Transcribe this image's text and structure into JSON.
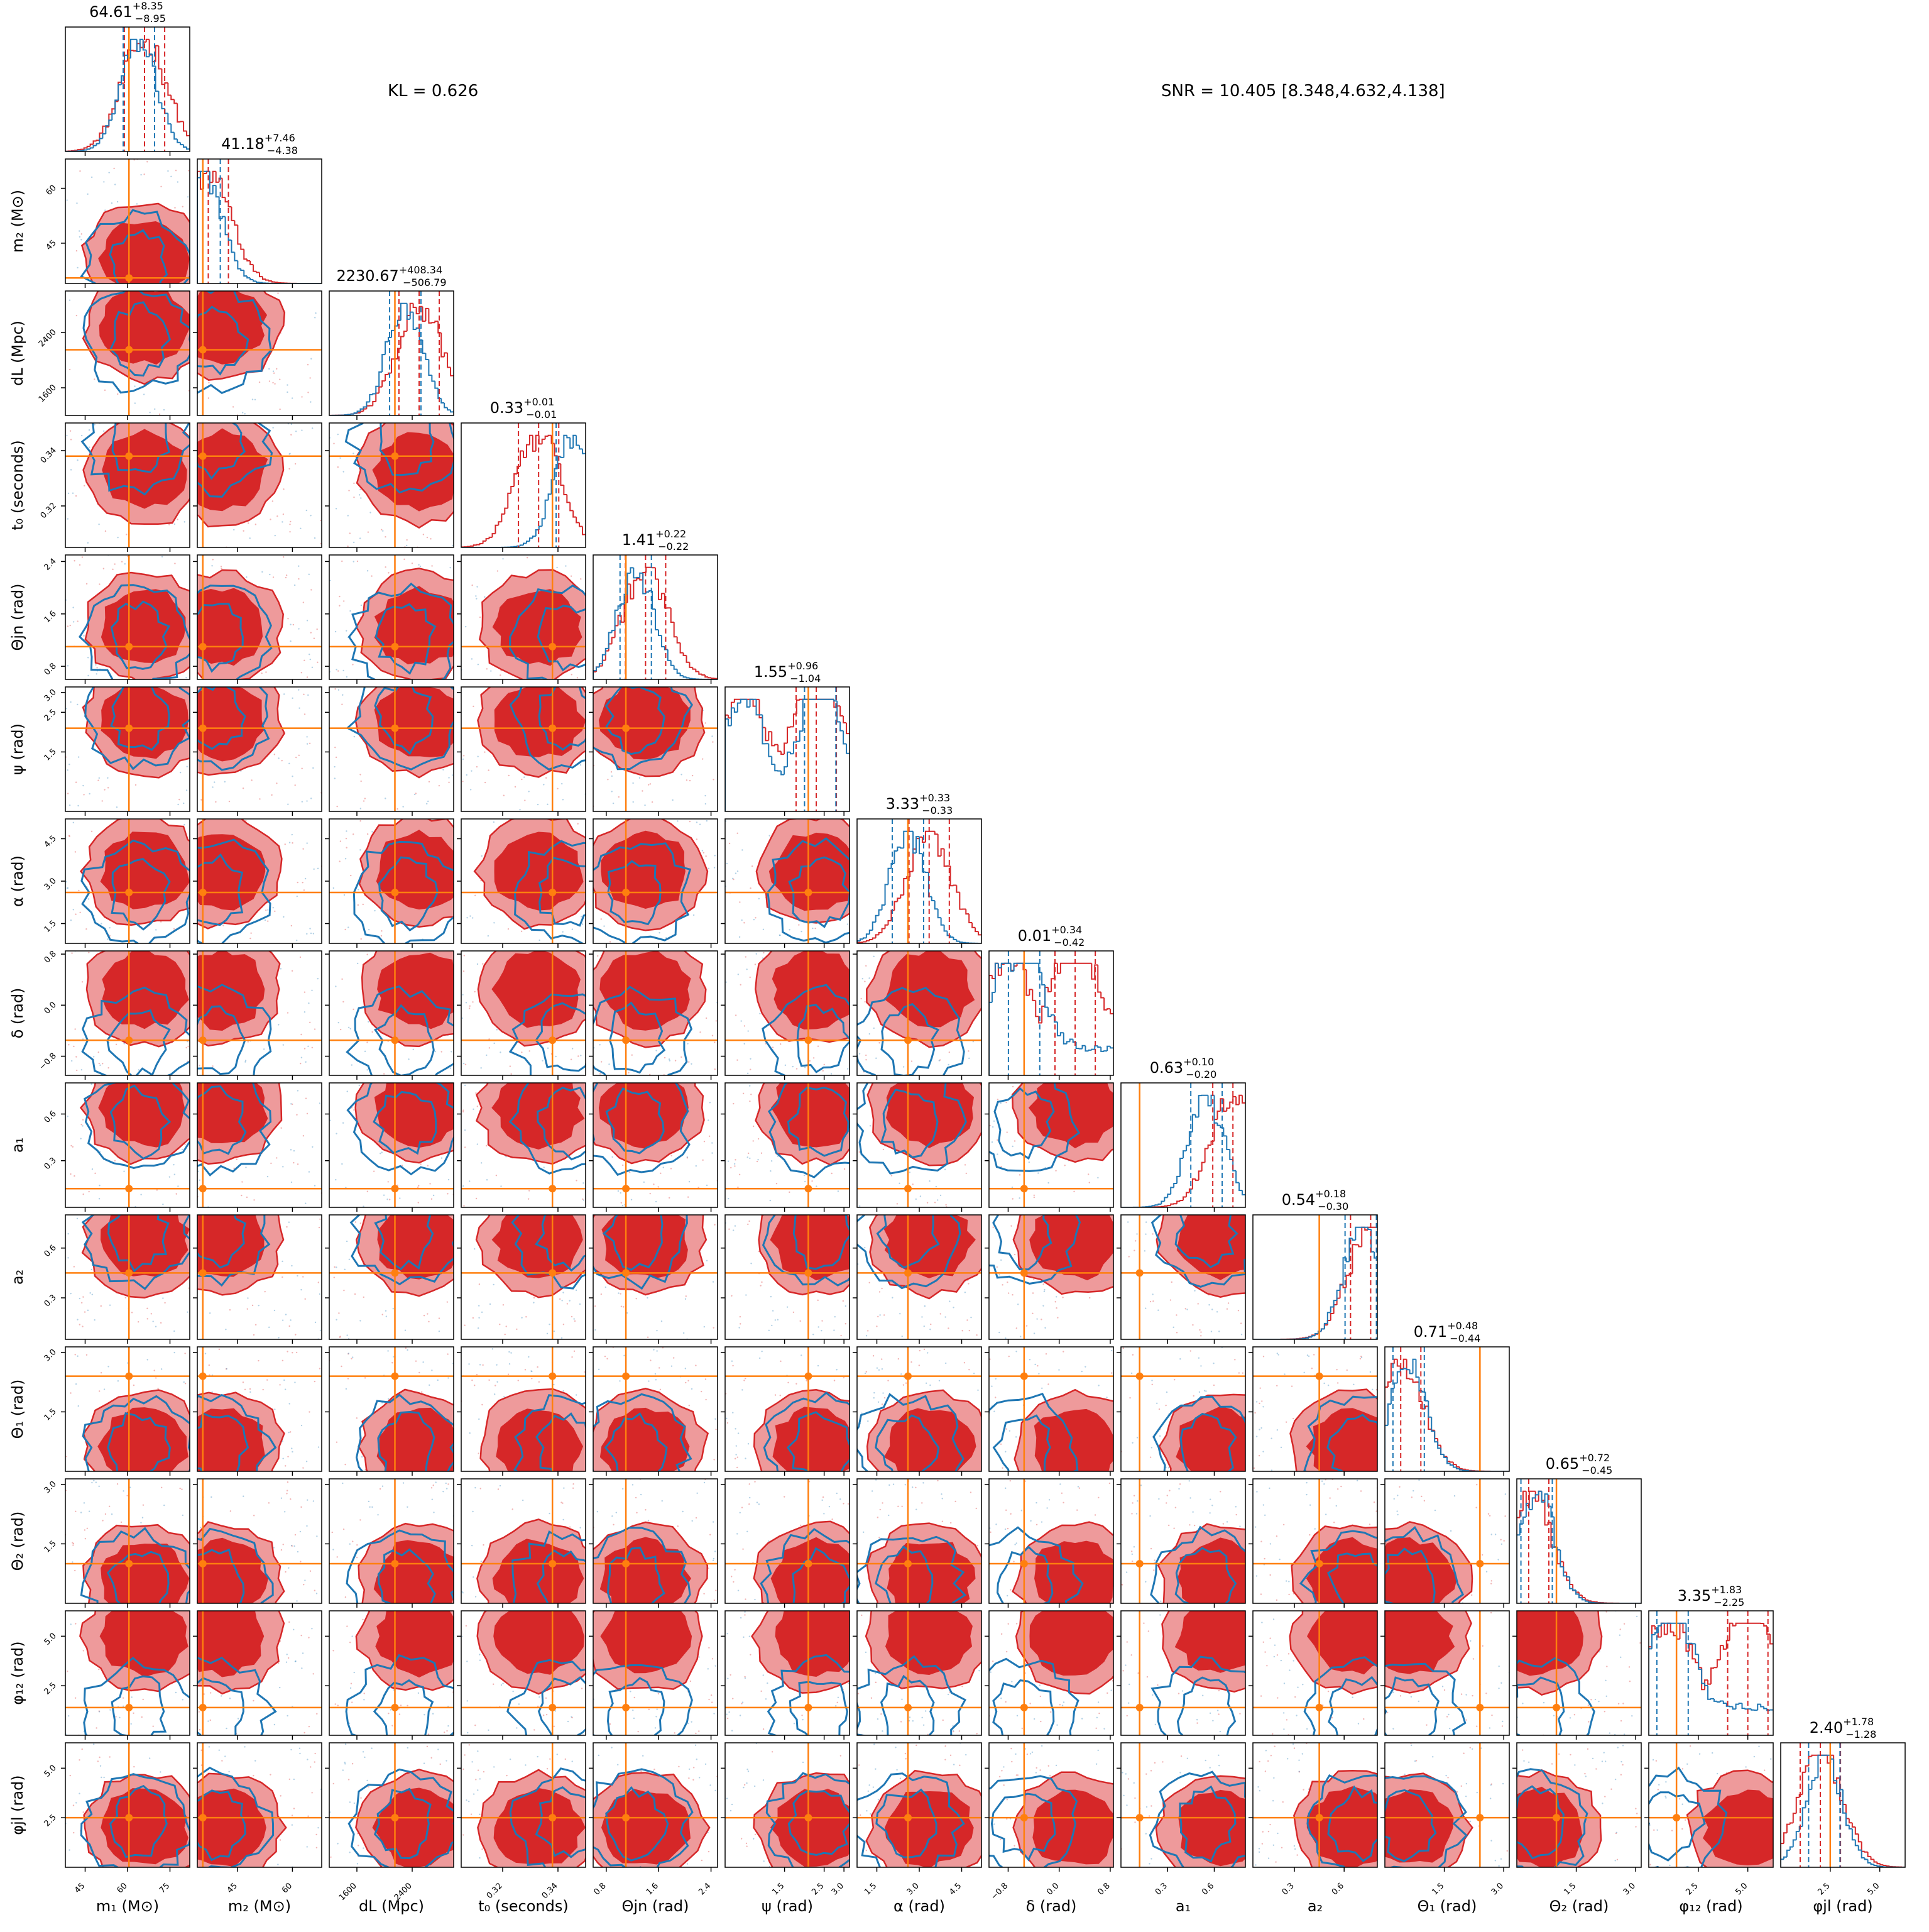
{
  "header": {
    "kl_text": "KL = 0.626",
    "snr_text": "SNR = 10.405 [8.348,4.632,4.138]"
  },
  "colors": {
    "approx": "#d62728",
    "reference": "#1f77b4",
    "truth": "#ff7f0e"
  },
  "chart_data": {
    "type": "corner",
    "n_params": 14,
    "parameters": [
      {
        "key": "m1",
        "label": "m_1 (M_⊙)",
        "axis_label_text": "m₁ (M⊙)",
        "range": [
          38,
          82
        ],
        "ticks": [
          45,
          60,
          75
        ],
        "tick_labels": [
          "45",
          "60",
          "75"
        ],
        "truth": 60.5,
        "median": "64.61",
        "plus": "+8.35",
        "minus": "−8.95",
        "hist_approx_peak": 66,
        "hist_ref_peak": 64
      },
      {
        "key": "m2",
        "label": "m_2 (M_⊙)",
        "axis_label_text": "m₂ (M⊙)",
        "range": [
          34,
          68
        ],
        "ticks": [
          45,
          60
        ],
        "tick_labels": [
          "45",
          "60"
        ],
        "truth": 35.5,
        "median": "41.18",
        "plus": "+7.46",
        "minus": "−4.38",
        "hist_approx_peak": 37,
        "hist_ref_peak": 36
      },
      {
        "key": "dL",
        "label": "d_L (Mpc)",
        "axis_label_text": "dL (Mpc)",
        "range": [
          1200,
          3000
        ],
        "ticks": [
          1600,
          2400
        ],
        "tick_labels": [
          "1600",
          "2400"
        ],
        "truth": 2150,
        "median": "2230.67",
        "plus": "+408.34",
        "minus": "−506.79",
        "hist_approx_peak": 2500,
        "hist_ref_peak": 2300
      },
      {
        "key": "t0",
        "label": "t_0 (seconds)",
        "axis_label_text": "t₀ (seconds)",
        "range": [
          0.305,
          0.35
        ],
        "ticks": [
          0.32,
          0.34
        ],
        "tick_labels": [
          "0.32",
          "0.34"
        ],
        "truth": 0.338,
        "median": "0.33",
        "plus": "+0.01",
        "minus": "−0.01",
        "hist_approx_peak": 0.333,
        "hist_ref_peak": 0.345
      },
      {
        "key": "thetajn",
        "label": "Θ_jn (rad)",
        "axis_label_text": "Θjn (rad)",
        "range": [
          0.6,
          2.5
        ],
        "ticks": [
          0.8,
          1.6,
          2.4
        ],
        "tick_labels": [
          "0.8",
          "1.6",
          "2.4"
        ],
        "truth": 1.1,
        "median": "1.41",
        "plus": "+0.22",
        "minus": "−0.22",
        "hist_approx_peak": 1.4,
        "hist_ref_peak": 1.25
      },
      {
        "key": "psi",
        "label": "ψ (rad)",
        "axis_label_text": "ψ (rad)",
        "range": [
          0,
          3.14
        ],
        "ticks": [
          1.5,
          2.5,
          3.0
        ],
        "tick_labels": [
          "1.5",
          "2.5",
          "3.0"
        ],
        "truth": 2.1,
        "median": "1.55",
        "plus": "+0.96",
        "minus": "−1.04",
        "hist_approx_peak": 2.3,
        "hist_ref_peak": 2.4
      },
      {
        "key": "alpha",
        "label": "α (rad)",
        "axis_label_text": "α (rad)",
        "range": [
          0.8,
          5.2
        ],
        "ticks": [
          1.5,
          3.0,
          4.5
        ],
        "tick_labels": [
          "1.5",
          "3.0",
          "4.5"
        ],
        "truth": 2.6,
        "median": "3.33",
        "plus": "+0.33",
        "minus": "−0.33",
        "hist_approx_peak": 3.35,
        "hist_ref_peak": 2.6
      },
      {
        "key": "delta",
        "label": "δ (rad)",
        "axis_label_text": "δ (rad)",
        "range": [
          -1.1,
          0.85
        ],
        "ticks": [
          -0.8,
          0.0,
          0.8
        ],
        "tick_labels": [
          "−0.8",
          "0.0",
          "0.8"
        ],
        "truth": -0.55,
        "median": "0.01",
        "plus": "+0.34",
        "minus": "−0.42",
        "hist_approx_peak": 0.25,
        "hist_ref_peak": -0.55
      },
      {
        "key": "a1",
        "label": "a_1",
        "axis_label_text": "a₁",
        "range": [
          0.0,
          0.8
        ],
        "ticks": [
          0.3,
          0.6
        ],
        "tick_labels": [
          "0.3",
          "0.6"
        ],
        "truth": 0.12,
        "median": "0.63",
        "plus": "+0.10",
        "minus": "−0.20",
        "hist_approx_peak": 0.72,
        "hist_ref_peak": 0.55
      },
      {
        "key": "a2",
        "label": "a_2",
        "axis_label_text": "a₂",
        "range": [
          0.05,
          0.8
        ],
        "ticks": [
          0.3,
          0.6
        ],
        "tick_labels": [
          "0.3",
          "0.6"
        ],
        "truth": 0.45,
        "median": "0.54",
        "plus": "+0.18",
        "minus": "−0.30",
        "hist_approx_peak": 0.76,
        "hist_ref_peak": 0.7
      },
      {
        "key": "theta1",
        "label": "Θ_1 (rad)",
        "axis_label_text": "Θ₁ (rad)",
        "range": [
          0.0,
          3.14
        ],
        "ticks": [
          1.5,
          3.0
        ],
        "tick_labels": [
          "1.5",
          "3.0"
        ],
        "truth": 2.4,
        "median": "0.71",
        "plus": "+0.48",
        "minus": "−0.44",
        "hist_approx_peak": 0.4,
        "hist_ref_peak": 0.6
      },
      {
        "key": "theta2",
        "label": "Θ_2 (rad)",
        "axis_label_text": "Θ₂ (rad)",
        "range": [
          0.0,
          3.14
        ],
        "ticks": [
          1.5,
          3.0
        ],
        "tick_labels": [
          "1.5",
          "3.0"
        ],
        "truth": 1.0,
        "median": "0.65",
        "plus": "+0.72",
        "minus": "−0.45",
        "hist_approx_peak": 0.3,
        "hist_ref_peak": 0.5
      },
      {
        "key": "phi12",
        "label": "φ_12 (rad)",
        "axis_label_text": "φ₁₂ (rad)",
        "range": [
          0.0,
          6.28
        ],
        "ticks": [
          2.5,
          5.0
        ],
        "tick_labels": [
          "2.5",
          "5.0"
        ],
        "truth": 1.4,
        "median": "3.35",
        "plus": "+1.83",
        "minus": "−2.25",
        "hist_approx_peak": 5.0,
        "hist_ref_peak": 1.2
      },
      {
        "key": "phijl",
        "label": "φ_jl (rad)",
        "axis_label_text": "φjl (rad)",
        "range": [
          0.0,
          6.28
        ],
        "ticks": [
          2.5,
          5.0
        ],
        "tick_labels": [
          "2.5",
          "5.0"
        ],
        "truth": 2.5,
        "median": "2.40",
        "plus": "+1.78",
        "minus": "−1.28",
        "hist_approx_peak": 2.0,
        "hist_ref_peak": 2.2
      }
    ]
  }
}
